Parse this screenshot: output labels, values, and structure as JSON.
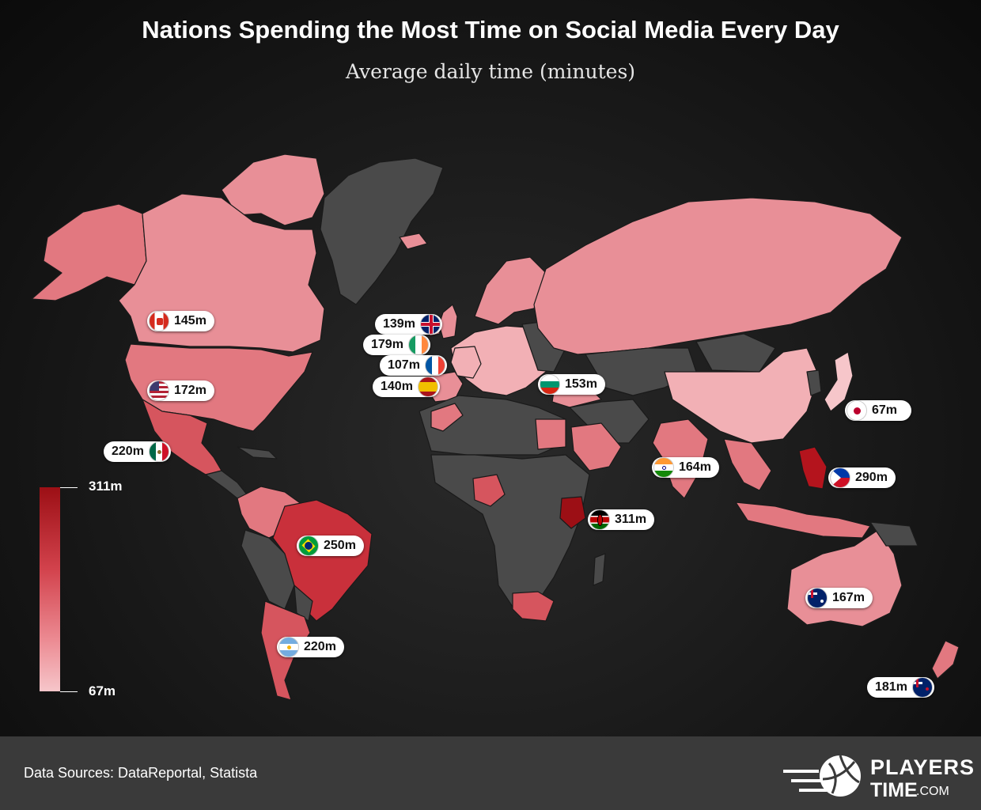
{
  "header": {
    "title": "Nations Spending the Most Time on Social Media Every Day",
    "subtitle": "Average daily time (minutes)"
  },
  "colors": {
    "no_data": "#4a4a4a",
    "scale_low": "#f6c6ca",
    "scale_high": "#9c0f15",
    "border": "#1a1a1a"
  },
  "legend": {
    "max_label": "311m",
    "min_label": "67m",
    "min_value": 67,
    "max_value": 311
  },
  "countries": [
    {
      "id": "canada",
      "label": "145m",
      "value": 145,
      "flag": "canada-flag-icon"
    },
    {
      "id": "united-states",
      "label": "172m",
      "value": 172,
      "flag": "usa-flag-icon"
    },
    {
      "id": "mexico",
      "label": "220m",
      "value": 220,
      "flag": "mexico-flag-icon"
    },
    {
      "id": "brazil",
      "label": "250m",
      "value": 250,
      "flag": "brazil-flag-icon"
    },
    {
      "id": "argentina",
      "label": "220m",
      "value": 220,
      "flag": "argentina-flag-icon"
    },
    {
      "id": "united-kingdom",
      "label": "139m",
      "value": 139,
      "flag": "uk-flag-icon"
    },
    {
      "id": "ireland",
      "label": "179m",
      "value": 179,
      "flag": "ireland-flag-icon"
    },
    {
      "id": "france",
      "label": "107m",
      "value": 107,
      "flag": "france-flag-icon"
    },
    {
      "id": "spain",
      "label": "140m",
      "value": 140,
      "flag": "spain-flag-icon"
    },
    {
      "id": "bulgaria",
      "label": "153m",
      "value": 153,
      "flag": "bulgaria-flag-icon"
    },
    {
      "id": "india",
      "label": "164m",
      "value": 164,
      "flag": "india-flag-icon"
    },
    {
      "id": "kenya",
      "label": "311m",
      "value": 311,
      "flag": "kenya-flag-icon"
    },
    {
      "id": "japan",
      "label": "67m",
      "value": 67,
      "flag": "japan-flag-icon"
    },
    {
      "id": "philippines",
      "label": "290m",
      "value": 290,
      "flag": "philippines-flag-icon"
    },
    {
      "id": "australia",
      "label": "167m",
      "value": 167,
      "flag": "australia-flag-icon"
    },
    {
      "id": "new-zealand",
      "label": "181m",
      "value": 181,
      "flag": "new-zealand-flag-icon"
    }
  ],
  "footer": {
    "source": "Data Sources: DataReportal, Statista",
    "logo_line1": "PLAYERS",
    "logo_line2": "TIME",
    "logo_suffix": ".COM"
  }
}
